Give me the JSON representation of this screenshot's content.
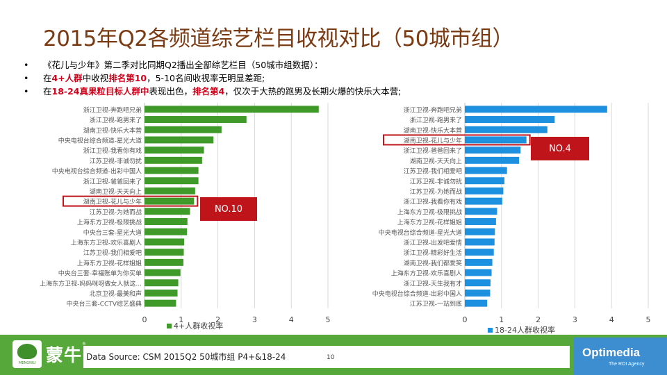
{
  "slide": {
    "title": "2015年Q2各频道综艺栏目收视对比（50城市组）",
    "bullets": [
      {
        "parts": [
          {
            "text": "《花儿与少年》第二季对比同期Q2播出全部综艺栏目（50城市组数据）：",
            "red": false
          }
        ]
      },
      {
        "parts": [
          {
            "text": "在",
            "red": false
          },
          {
            "text": "4+人群",
            "red": true
          },
          {
            "text": "中收视",
            "red": false
          },
          {
            "text": "排名第10",
            "red": true
          },
          {
            "text": "，5-10名间收视率无明显差距;",
            "red": false
          }
        ]
      },
      {
        "parts": [
          {
            "text": "在",
            "red": false
          },
          {
            "text": "18-24真果粒目标人群中",
            "red": true
          },
          {
            "text": "表现出色，",
            "red": false
          },
          {
            "text": "排名第4",
            "red": true
          },
          {
            "text": "，仅次于大热的跑男及长期火爆的快乐大本营;",
            "red": false
          }
        ]
      }
    ],
    "bullet_symbol": "•",
    "page_number": "10",
    "footer": {
      "source": "Data Source:  CSM 2015Q2  50城市组  P4+&18-24",
      "brand_cn": "蒙牛",
      "brand_reg": "®",
      "logo_text": "MENGNIU",
      "agency": "Optimedia",
      "agency_tagline": "The ROI Agency"
    },
    "colors": {
      "title": "#7a3a12",
      "green": "#3f9a2a",
      "blue": "#1e90e0",
      "highlight": "#c0141b",
      "footer": "#56a83a"
    }
  },
  "chart_data": [
    {
      "type": "bar",
      "orientation": "horizontal",
      "legend": "4+人群收视率",
      "legend_position": "bottom",
      "color": "#3f9a2a",
      "xlim": [
        0,
        5
      ],
      "xticks": [
        0,
        1,
        2,
        3,
        4,
        5
      ],
      "grid": true,
      "categories": [
        "浙江卫视-奔跑吧兄弟",
        "浙江卫视-跑男来了",
        "湖南卫视-快乐大本营",
        "中央电视台综合频道-星光大道",
        "浙江卫视-我看你有戏",
        "江苏卫视-非诚勿扰",
        "中央电视台综合频道-出彩中国人",
        "浙江卫视-爸爸回来了",
        "湖南卫视-天天向上",
        "湖南卫视-花儿与少年",
        "江苏卫视-为她而战",
        "上海东方卫视-极限挑战",
        "中央台三套-星光大道",
        "上海东方卫视-欢乐喜剧人",
        "江苏卫视-我们相爱吧",
        "上海东方卫视-花样姐姐",
        "中央台三套-幸福账单为你买单",
        "上海东方卫视-妈妈咪呀做女人就这...",
        "北京卫视-最美和声",
        "中央台三套-CCTV综艺盛典"
      ],
      "values": [
        4.75,
        2.78,
        2.1,
        1.88,
        1.62,
        1.57,
        1.47,
        1.47,
        1.38,
        1.35,
        1.24,
        1.17,
        1.16,
        1.08,
        1.07,
        1.06,
        0.98,
        0.92,
        0.9,
        0.86
      ],
      "highlight_index": 9,
      "annotation": "NO.10"
    },
    {
      "type": "bar",
      "orientation": "horizontal",
      "legend": "18-24人群收视率",
      "legend_position": "bottom",
      "color": "#1e90e0",
      "xlim": [
        0,
        5
      ],
      "xticks": [
        0,
        1,
        2,
        3,
        4,
        5
      ],
      "grid": true,
      "categories": [
        "浙江卫视-奔跑吧兄弟",
        "浙江卫视-跑男来了",
        "湖南卫视-快乐大本营",
        "湖南卫视-花儿与少年",
        "浙江卫视-爸爸回来了",
        "湖南卫视-天天向上",
        "江苏卫视-我们相爱吧",
        "江苏卫视-非诚勿扰",
        "江苏卫视-为她而战",
        "浙江卫视-我看你有戏",
        "上海东方卫视-极限挑战",
        "上海东方卫视-花样姐姐",
        "中央电视台综合频道-星光大道",
        "浙江卫视-出发吧爱情",
        "浙江卫视-精彩好生活",
        "湖南卫视-我们都爱笑",
        "上海东方卫视-欢乐喜剧人",
        "浙江卫视-天生我有才",
        "中央电视台综合频道-出彩中国人",
        "江苏卫视-一站到底"
      ],
      "values": [
        3.88,
        2.45,
        2.25,
        1.68,
        1.52,
        1.48,
        1.15,
        1.08,
        1.05,
        1.02,
        0.88,
        0.85,
        0.82,
        0.81,
        0.79,
        0.75,
        0.73,
        0.7,
        0.69,
        0.61
      ],
      "highlight_index": 3,
      "annotation": "NO.4"
    }
  ]
}
